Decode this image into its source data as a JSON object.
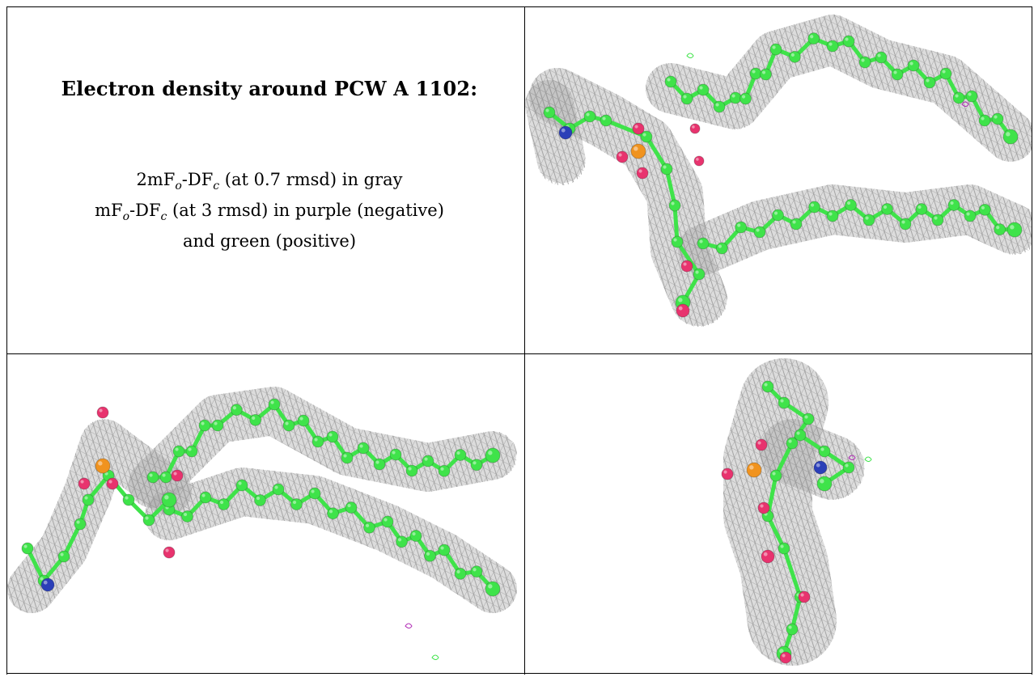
{
  "caption": {
    "title": "Electron density around PCW A 1102:",
    "line1": {
      "a": "2mF",
      "o": "o",
      "b": "-DF",
      "c": "c",
      "d": " (at 0.7 rmsd) in gray"
    },
    "line2": {
      "a": "mF",
      "o": "o",
      "b": "-DF",
      "c": "c",
      "d": " (at 3 rmsd) in purple (negative)"
    },
    "line3": "and green (positive)"
  },
  "colors": {
    "mesh": "#9a9a9a",
    "carbon": "#3fe34a",
    "oxygen": "#e8336e",
    "phosphorus": "#f0931f",
    "nitrogen": "#2b3fb8",
    "negative_density": "#b02ab5",
    "positive_density": "#3fe34a"
  },
  "panels": [
    {
      "name": "view-top-right"
    },
    {
      "name": "view-bottom-left"
    },
    {
      "name": "view-bottom-right"
    }
  ]
}
